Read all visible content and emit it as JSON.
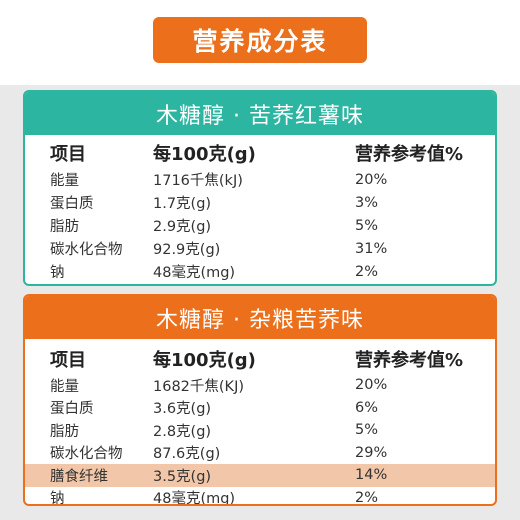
{
  "title": "营养成分表",
  "colors": {
    "orange": "#ec6f1b",
    "teal": "#2cb5a0",
    "highlight": "#f2c6a8"
  },
  "columns": [
    "项目",
    "每100克(g)",
    "营养参考值%"
  ],
  "tables": [
    {
      "name": "木糖醇 · 苦荞红薯味",
      "rows": [
        {
          "item": "能量",
          "per100g": "1716千焦(kJ)",
          "nrv": "20%"
        },
        {
          "item": "蛋白质",
          "per100g": "1.7克(g)",
          "nrv": "3%"
        },
        {
          "item": "脂肪",
          "per100g": "2.9克(g)",
          "nrv": "5%"
        },
        {
          "item": "碳水化合物",
          "per100g": "92.9克(g)",
          "nrv": "31%"
        },
        {
          "item": "钠",
          "per100g": "48毫克(mg)",
          "nrv": "2%"
        }
      ]
    },
    {
      "name": "木糖醇 · 杂粮苦荞味",
      "rows": [
        {
          "item": "能量",
          "per100g": "1682千焦(KJ)",
          "nrv": "20%"
        },
        {
          "item": "蛋白质",
          "per100g": "3.6克(g)",
          "nrv": "6%"
        },
        {
          "item": "脂肪",
          "per100g": "2.8克(g)",
          "nrv": "5%"
        },
        {
          "item": "碳水化合物",
          "per100g": "87.6克(g)",
          "nrv": "29%"
        },
        {
          "item": "膳食纤维",
          "per100g": "3.5克(g)",
          "nrv": "14%"
        },
        {
          "item": "钠",
          "per100g": "48毫克(mg)",
          "nrv": "2%"
        }
      ]
    }
  ]
}
